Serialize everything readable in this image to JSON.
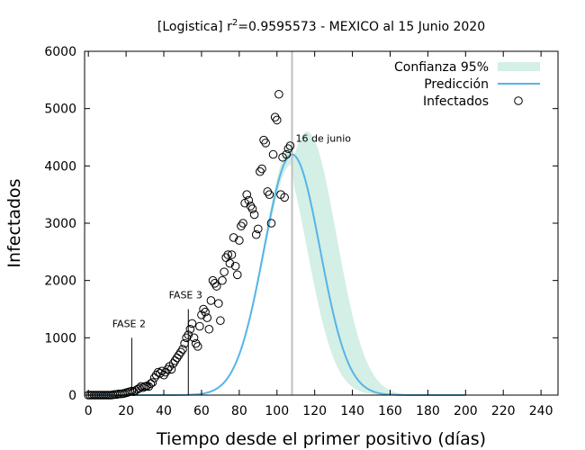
{
  "chart_data": {
    "type": "scatter",
    "title": {
      "prefix": "[Logistica] r",
      "superscript": "2",
      "suffix": "=0.9595573 - MEXICO al 15 Junio 2020"
    },
    "xlabel": "Tiempo desde el primer positivo (días)",
    "ylabel": "Infectados",
    "xlim": [
      -2,
      249
    ],
    "ylim": [
      0,
      6000
    ],
    "xticks": [
      0,
      20,
      40,
      60,
      80,
      100,
      120,
      140,
      160,
      180,
      200,
      220,
      240
    ],
    "yticks": [
      0,
      1000,
      2000,
      3000,
      4000,
      5000,
      6000
    ],
    "legend_position": "top-right",
    "legend": [
      {
        "key": "band",
        "label": "Confianza 95%",
        "color": "#d4efe5"
      },
      {
        "key": "line",
        "label": "Predicción",
        "color": "#56b4e9"
      },
      {
        "key": "points",
        "label": "Infectados",
        "color": "#000000"
      }
    ],
    "logistic_fit": {
      "peak": 4200,
      "peak_day": 108,
      "width": 21
    },
    "confidence_band": {
      "peak": 4600,
      "peak_day": 116,
      "width": 22
    },
    "vertical_line": {
      "x": 108,
      "label": "16 de junio",
      "color": "#bfbfbf"
    },
    "annotations": [
      {
        "label": "FASE 2",
        "x": 23,
        "y_top": 1000
      },
      {
        "label": "FASE 3",
        "x": 53,
        "y_top": 1500
      }
    ],
    "infectados": {
      "x": [
        0,
        1,
        2,
        3,
        4,
        5,
        6,
        7,
        8,
        9,
        10,
        11,
        12,
        13,
        14,
        15,
        16,
        17,
        18,
        19,
        20,
        21,
        22,
        23,
        24,
        25,
        26,
        27,
        28,
        29,
        30,
        31,
        32,
        33,
        34,
        35,
        36,
        37,
        38,
        39,
        40,
        41,
        42,
        43,
        44,
        45,
        46,
        47,
        48,
        49,
        50,
        51,
        52,
        53,
        54,
        55,
        56,
        57,
        58,
        59,
        60,
        61,
        62,
        63,
        64,
        65,
        66,
        67,
        68,
        69,
        70,
        71,
        72,
        73,
        74,
        75,
        76,
        77,
        78,
        79,
        80,
        81,
        82,
        83,
        84,
        85,
        86,
        87,
        88,
        89,
        90,
        91,
        92,
        93,
        94,
        95,
        96,
        97,
        98,
        99,
        100,
        101,
        102,
        103,
        104,
        105,
        106,
        107
      ],
      "y": [
        0,
        0,
        0,
        0,
        0,
        0,
        0,
        0,
        0,
        0,
        0,
        0,
        0,
        5,
        10,
        10,
        20,
        20,
        25,
        30,
        40,
        50,
        60,
        70,
        60,
        80,
        100,
        120,
        150,
        130,
        150,
        160,
        150,
        200,
        220,
        300,
        350,
        400,
        380,
        420,
        350,
        400,
        450,
        500,
        450,
        550,
        600,
        650,
        700,
        750,
        800,
        900,
        1000,
        1050,
        1150,
        1250,
        1000,
        900,
        850,
        1200,
        1400,
        1500,
        1450,
        1350,
        1150,
        1650,
        2000,
        1950,
        1900,
        1600,
        1300,
        2000,
        2150,
        2400,
        2450,
        2300,
        2450,
        2750,
        2250,
        2100,
        2700,
        2950,
        3000,
        3350,
        3500,
        3400,
        3300,
        3250,
        3150,
        2800,
        2900,
        3900,
        3950,
        4450,
        4400,
        3550,
        3500,
        3000,
        4200,
        4850,
        4800,
        5250,
        3500,
        4150,
        3450,
        4200,
        4300,
        4350
      ]
    }
  }
}
